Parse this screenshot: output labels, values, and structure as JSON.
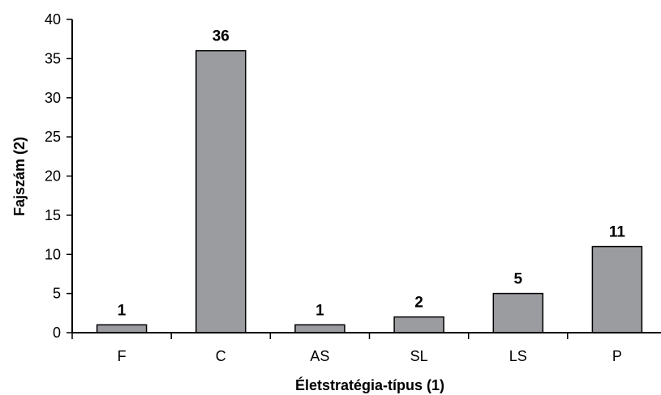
{
  "chart_data": {
    "type": "bar",
    "categories": [
      "F",
      "C",
      "AS",
      "SL",
      "LS",
      "P"
    ],
    "values": [
      1,
      36,
      1,
      2,
      5,
      11
    ],
    "data_labels": [
      "1",
      "36",
      "1",
      "2",
      "5",
      "11"
    ],
    "xlabel": "Életstratégia-típus (1)",
    "ylabel": "Fajszám (2)",
    "ylim": [
      0,
      40
    ],
    "yticks": [
      0,
      5,
      10,
      15,
      20,
      25,
      30,
      35,
      40
    ],
    "grid": false,
    "legend": "none",
    "colors": {
      "bar_fill": "#9a9ca0",
      "bar_stroke": "#000000",
      "axis": "#000000"
    }
  }
}
